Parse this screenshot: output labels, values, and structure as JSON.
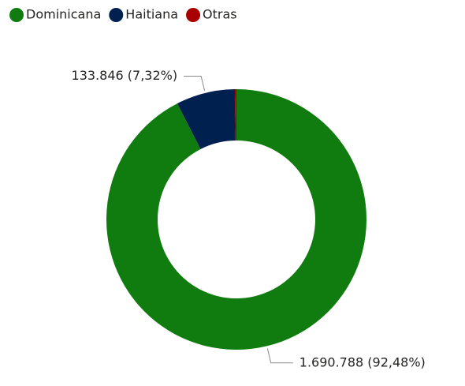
{
  "chart_data": {
    "type": "donut",
    "series": [
      {
        "name": "Dominicana",
        "color": "#107c10"
      },
      {
        "name": "Haitiana",
        "color": "#002050"
      },
      {
        "name": "Otras",
        "color": "#a80000"
      }
    ],
    "categories": [
      "Dominicana",
      "Haitiana",
      "Otras"
    ],
    "values": [
      1690788,
      133846,
      3640
    ],
    "value_labels": [
      "1.690.788 (92,48%)",
      "133.846 (7,32%)",
      null
    ],
    "legend": "top-left"
  }
}
